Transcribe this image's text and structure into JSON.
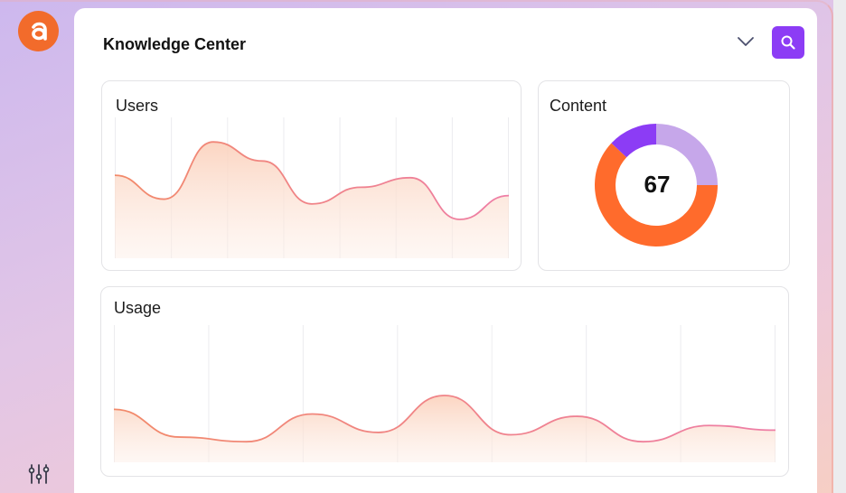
{
  "app": {
    "logo_icon": "app-logo-a-icon",
    "settings_icon": "filters-sliders-icon"
  },
  "header": {
    "title": "Knowledge Center"
  },
  "colors": {
    "accent": "#8c3cf5",
    "orange": "#ff6b2c",
    "lavender": "#c6a7ea",
    "line": "#ee7e9c"
  },
  "cards": {
    "users": {
      "title": "Users"
    },
    "content": {
      "title": "Content",
      "value": "67",
      "segments": [
        {
          "name": "lavender",
          "fraction": 0.25,
          "color": "#c6a7ea"
        },
        {
          "name": "orange",
          "fraction": 0.62,
          "color": "#ff6b2c"
        },
        {
          "name": "purple",
          "fraction": 0.13,
          "color": "#8c3cf5"
        }
      ]
    },
    "usage": {
      "title": "Usage"
    }
  },
  "chart_data": [
    {
      "type": "area",
      "title": "Users",
      "values": [
        0.62,
        0.42,
        0.9,
        0.74,
        0.38,
        0.52,
        0.6,
        0.25,
        0.45
      ],
      "ylim": [
        0,
        1
      ],
      "grid": true
    },
    {
      "type": "pie",
      "title": "Content",
      "center_label": "67",
      "slices": [
        25,
        62,
        13
      ]
    },
    {
      "type": "area",
      "title": "Usage",
      "values": [
        0.38,
        0.14,
        0.1,
        0.34,
        0.18,
        0.5,
        0.16,
        0.32,
        0.1,
        0.24,
        0.2
      ],
      "ylim": [
        0,
        1
      ],
      "grid": true
    }
  ]
}
